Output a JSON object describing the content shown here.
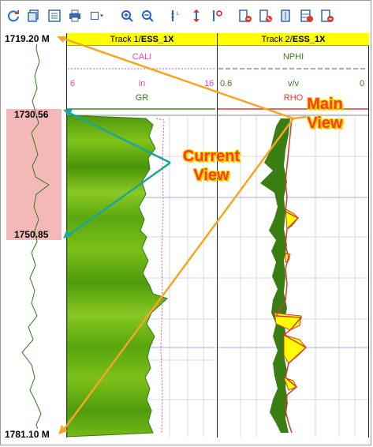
{
  "toolbar": {
    "buttons": [
      "refresh-icon",
      "copy-icon",
      "list-icon",
      "print-icon",
      "dropdown-icon",
      "zoom-in-icon",
      "zoom-out-icon",
      "scale-icon",
      "scale-up-down-icon",
      "scale-flip-icon",
      "add-track-icon",
      "remove-track-icon",
      "layers-icon",
      "grid-icon",
      "delete-track-icon"
    ]
  },
  "overview": {
    "top_depth": "1719.20 M",
    "current_top": "1730.56",
    "current_bottom": "1750.85",
    "bottom_depth": "1781.10 M"
  },
  "track1": {
    "header_prefix": "Track 1/",
    "header_well": "ESS_1X",
    "curve1_name": "CALI",
    "scale_min": "6",
    "scale_unit": "in",
    "scale_max": "16",
    "curve2_name": "GR"
  },
  "track2": {
    "header_prefix": "Track 2/",
    "header_well": "ESS_1X",
    "curve1_name": "NPHI",
    "scale_min": "0.6",
    "scale_unit": "v/v",
    "scale_max": "0",
    "curve2_name": "RHO"
  },
  "annotations": {
    "main_view_line1": "Main",
    "main_view_line2": "View",
    "current_view_line1": "Current",
    "current_view_line2": "View"
  },
  "colors": {
    "gr_fill": "#5aa80f",
    "rhob_fill": "#ffff00",
    "nphi_fill": "#3a7d12",
    "header": "#ffff00",
    "current_range": "#f4b8b8",
    "arrow_orange": "#f5a623",
    "arrow_teal": "#1aa69a"
  }
}
